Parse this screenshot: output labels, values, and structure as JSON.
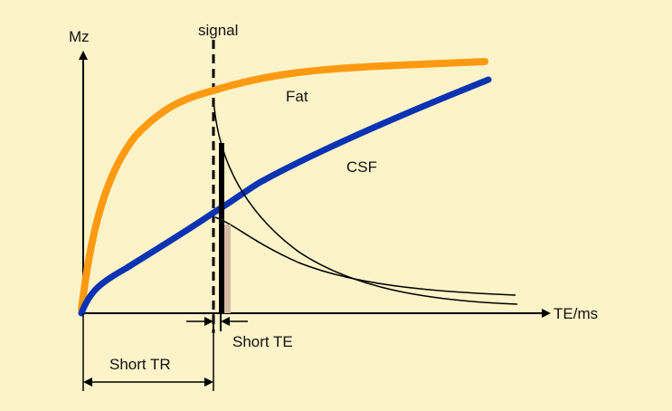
{
  "labels": {
    "y_axis": "Mz",
    "x_axis": "TE/ms",
    "signal": "signal",
    "fat": "Fat",
    "csf": "CSF",
    "short_te": "Short TE",
    "short_tr": "Short TR"
  },
  "colors": {
    "background": "#fdf3c9",
    "fat_curve": "#ff9a10",
    "csf_curve": "#0a33b3",
    "signal_bar": "#000000",
    "signal_bar_shade": "#d2b9a4",
    "lines": "#000000"
  }
}
